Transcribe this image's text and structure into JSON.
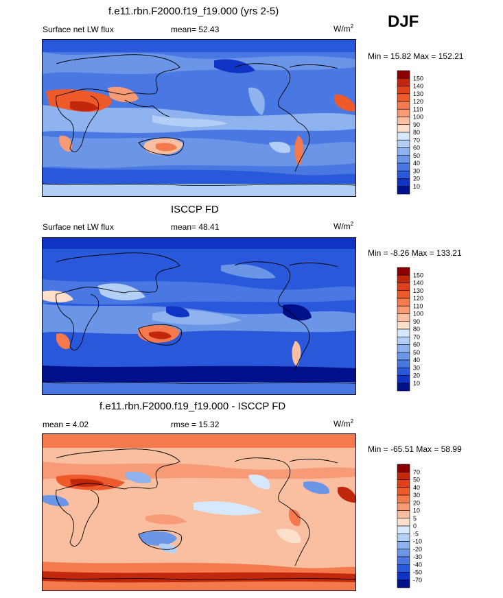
{
  "season": "DJF",
  "panels": [
    {
      "title": "f.e11.rbn.F2000.f19_f19.000 (yrs 2-5)",
      "left": "Surface net LW flux",
      "center": "mean=  52.43",
      "units_main": "W/m",
      "units_sup": "2",
      "minmax": "Min =  15.82 Max = 152.21",
      "palette": "abs"
    },
    {
      "title": "ISCCP FD",
      "left": "Surface net LW flux",
      "center": "mean=  48.41",
      "units_main": "W/m",
      "units_sup": "2",
      "minmax": "Min =  -8.26 Max = 133.21",
      "palette": "abs"
    },
    {
      "title": "f.e11.rbn.F2000.f19_f19.000 - ISCCP FD",
      "left": "mean =  4.02",
      "center": "rmse =  15.32",
      "units_main": "W/m",
      "units_sup": "2",
      "minmax": "Min = -65.51 Max =  58.99",
      "palette": "diff"
    }
  ],
  "colorbars": {
    "abs": {
      "labels": [
        "150",
        "140",
        "130",
        "120",
        "110",
        "100",
        "90",
        "80",
        "70",
        "60",
        "50",
        "40",
        "30",
        "20",
        "10"
      ],
      "colors": [
        "#8b0000",
        "#c1270a",
        "#e0401a",
        "#ef5a2a",
        "#f47a4e",
        "#f79a76",
        "#fabfa0",
        "#fde0cc",
        "#d6e8fb",
        "#b3cff6",
        "#8eb3ef",
        "#6b96e8",
        "#4a78e2",
        "#2a58db",
        "#0f33c4",
        "#000f8a"
      ]
    },
    "diff": {
      "labels": [
        "70",
        "50",
        "40",
        "30",
        "20",
        "10",
        "5",
        "0",
        "-5",
        "-10",
        "-20",
        "-30",
        "-40",
        "-50",
        "-70"
      ],
      "colors": [
        "#8b0000",
        "#c1270a",
        "#e0401a",
        "#ef5a2a",
        "#f47a4e",
        "#f79a76",
        "#fabfa0",
        "#fde0cc",
        "#d6e8fb",
        "#b3cff6",
        "#8eb3ef",
        "#6b96e8",
        "#4a78e2",
        "#2a58db",
        "#0f33c4",
        "#000f8a"
      ]
    }
  }
}
